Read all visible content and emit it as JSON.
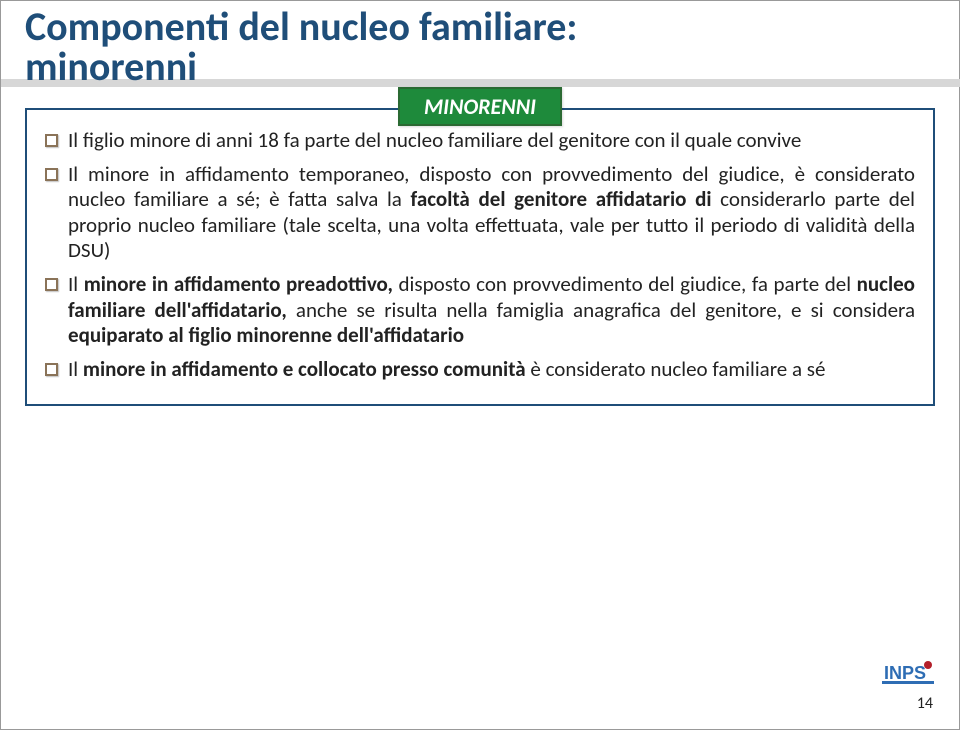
{
  "colors": {
    "title": "#1f4e79",
    "title_bar": "#d7d7d7",
    "tag_bg": "#1e8a3b",
    "tag_border": "#2b6a33",
    "tag_text": "#ffffff",
    "box_border": "#1f4e79",
    "bullet_border": "#8a7358",
    "text": "#222222",
    "logo_fill": "#2e6db4",
    "logo_accent": "#b31f2a"
  },
  "title": "Componenti del nucleo familiare: minorenni",
  "tag": "MINORENNI",
  "bullets": [
    "Il figlio minore di anni 18 fa parte del nucleo familiare del genitore con il quale convive",
    "Il minore in affidamento temporaneo, disposto con provvedimento del giudice, è considerato nucleo familiare a sé; è fatta salva la <b>facoltà del genitore affidatario di</b> considerarlo parte del proprio nucleo familiare (tale scelta, una volta effettuata, vale per tutto il periodo di validità della DSU)",
    "Il <b>minore in affidamento preadottivo,</b> disposto con provvedimento del giudice, fa parte del <b>nucleo familiare dell'affidatario,</b> anche se risulta nella famiglia anagrafica del genitore, e si considera <b>equiparato al figlio minorenne dell'affidatario</b>",
    "Il <b>minore in affidamento e collocato presso comunità</b> è considerato nucleo familiare a sé"
  ],
  "page_number": "14",
  "logo_text": "INPS"
}
